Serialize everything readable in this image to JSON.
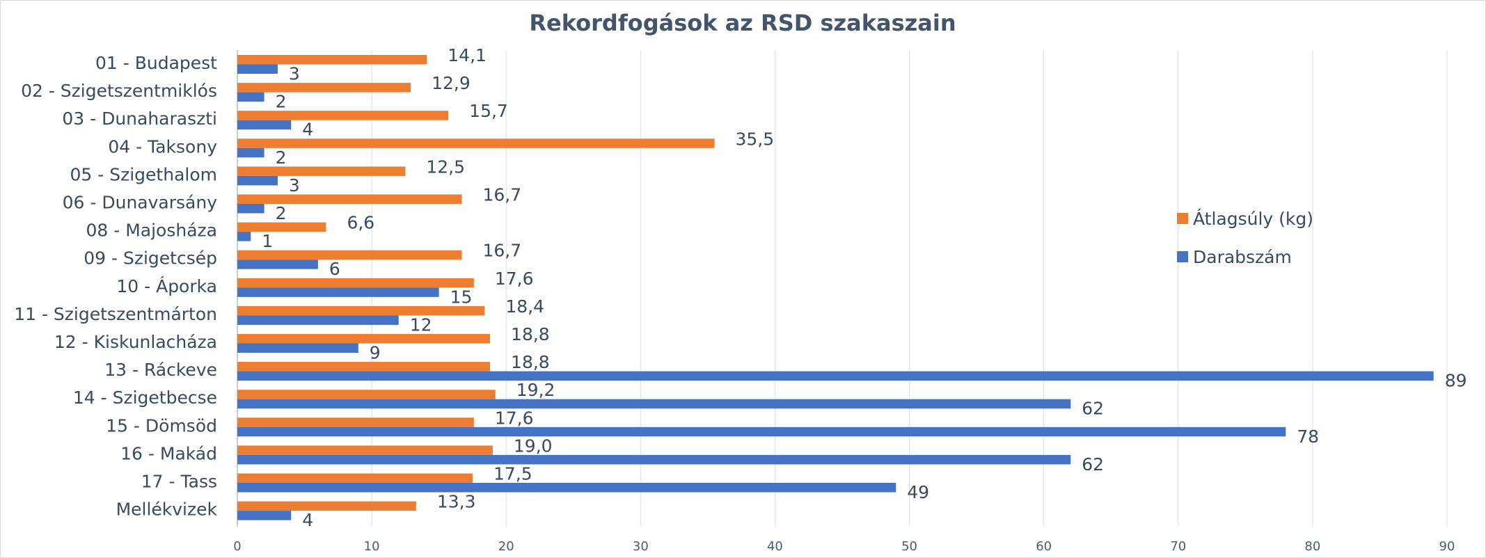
{
  "chart_data": {
    "type": "bar",
    "orientation": "horizontal",
    "title": "Rekordfogások az RSD szakaszain",
    "categories": [
      "01 - Budapest",
      "02 - Szigetszentmiklós",
      "03 - Dunaharaszti",
      "04 - Taksony",
      "05 - Szigethalom",
      "06 - Dunavarsány",
      "08 - Majosháza",
      "09 - Szigetcsép",
      "10 - Áporka",
      "11 - Szigetszentmárton",
      "12 - Kiskunlacháza",
      "13 - Ráckeve",
      "14 - Szigetbecse",
      "15 - Dömsöd",
      "16 - Makád",
      "17 - Tass",
      "Mellékvizek"
    ],
    "series": [
      {
        "name": "Átlagsúly (kg)",
        "color": "#ed7d31",
        "values": [
          14.1,
          12.9,
          15.7,
          35.5,
          12.5,
          16.7,
          6.6,
          16.7,
          17.6,
          18.4,
          18.8,
          18.8,
          19.2,
          17.6,
          19.0,
          17.5,
          13.3
        ],
        "labels": [
          "14,1",
          "12,9",
          "15,7",
          "35,5",
          "12,5",
          "16,7",
          "6,6",
          "16,7",
          "17,6",
          "18,4",
          "18,8",
          "18,8",
          "19,2",
          "17,6",
          "19,0",
          "17,5",
          "13,3"
        ]
      },
      {
        "name": "Darabszám",
        "color": "#4472c4",
        "values": [
          3,
          2,
          4,
          2,
          3,
          2,
          1,
          6,
          15,
          12,
          9,
          89,
          62,
          78,
          62,
          49,
          4
        ],
        "labels": [
          "3",
          "2",
          "4",
          "2",
          "3",
          "2",
          "1",
          "6",
          "15",
          "12",
          "9",
          "89",
          "62",
          "78",
          "62",
          "49",
          "4"
        ]
      }
    ],
    "xlim": [
      0,
      90
    ],
    "xticks": [
      0,
      10,
      20,
      30,
      40,
      50,
      60,
      70,
      80,
      90
    ],
    "grid": true,
    "legend": "right"
  }
}
